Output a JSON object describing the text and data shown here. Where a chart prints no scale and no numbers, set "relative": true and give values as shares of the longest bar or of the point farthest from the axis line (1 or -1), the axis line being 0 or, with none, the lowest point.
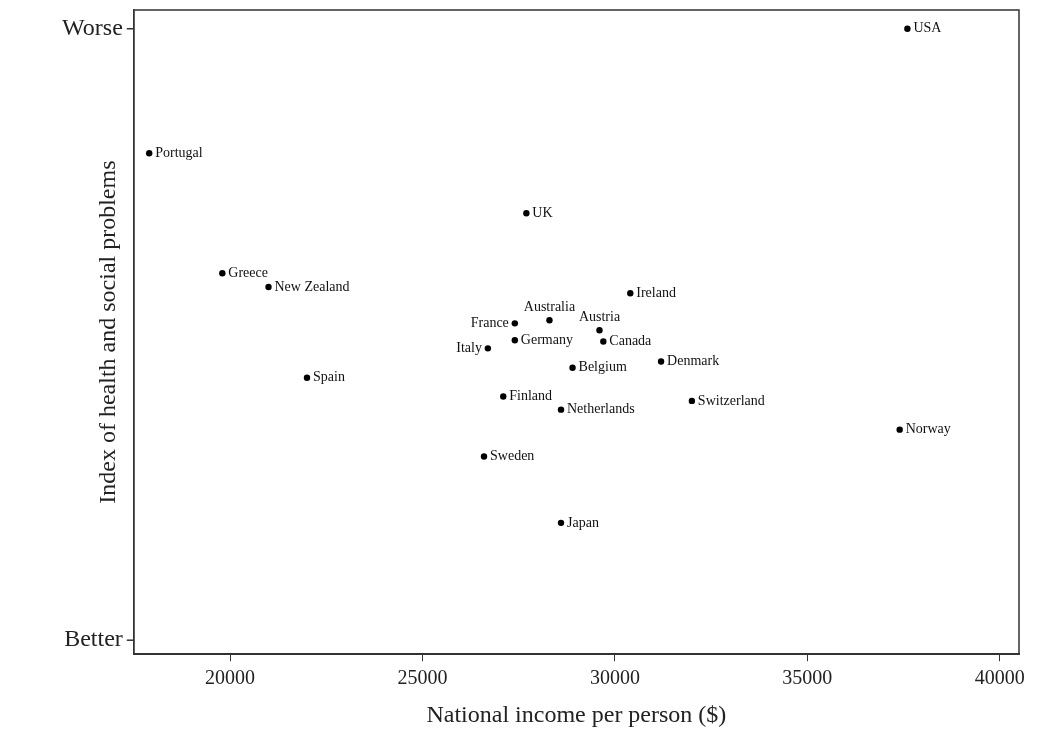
{
  "chart_data": {
    "type": "scatter",
    "xlabel": "National income per person ($)",
    "ylabel": "Index of health and social problems",
    "relative": true,
    "x": [
      37600,
      17900,
      27700,
      19800,
      21000,
      30400,
      28300,
      27400,
      29600,
      27400,
      29700,
      26700,
      31200,
      28900,
      22000,
      27100,
      32000,
      28600,
      37400,
      26600,
      28600
    ],
    "values": [
      1.0,
      0.801,
      0.705,
      0.609,
      0.587,
      0.577,
      0.534,
      0.529,
      0.518,
      0.502,
      0.5,
      0.489,
      0.468,
      0.458,
      0.442,
      0.412,
      0.405,
      0.391,
      0.359,
      0.316,
      0.21
    ],
    "color": "#000000",
    "marker": "circle",
    "grid": false,
    "legend": false,
    "xlim": [
      17500,
      40500
    ],
    "xticks": [
      20000,
      25000,
      30000,
      35000,
      40000
    ],
    "annotations": [
      "Worse",
      "Better",
      {
        "text": "USA",
        "x": 37600,
        "y": 1.0
      },
      {
        "text": "Portugal",
        "x": 17900,
        "y": 0.801
      },
      {
        "text": "UK",
        "x": 27700,
        "y": 0.705
      },
      {
        "text": "Greece",
        "x": 19800,
        "y": 0.609
      },
      {
        "text": "New Zealand",
        "x": 21000,
        "y": 0.587
      },
      {
        "text": "Ireland",
        "x": 30400,
        "y": 0.577
      },
      {
        "text": "Australia",
        "x": 28300,
        "y": 0.534
      },
      {
        "text": "France",
        "x": 27400,
        "y": 0.529
      },
      {
        "text": "Austria",
        "x": 29600,
        "y": 0.518
      },
      {
        "text": "Germany",
        "x": 27400,
        "y": 0.502
      },
      {
        "text": "Canada",
        "x": 29700,
        "y": 0.5
      },
      {
        "text": "Italy",
        "x": 26700,
        "y": 0.489
      },
      {
        "text": "Denmark",
        "x": 31200,
        "y": 0.468
      },
      {
        "text": "Belgium",
        "x": 28900,
        "y": 0.458
      },
      {
        "text": "Spain",
        "x": 22000,
        "y": 0.442
      },
      {
        "text": "Finland",
        "x": 27100,
        "y": 0.412
      },
      {
        "text": "Switzerland",
        "x": 32000,
        "y": 0.405
      },
      {
        "text": "Netherlands",
        "x": 28600,
        "y": 0.391
      },
      {
        "text": "Norway",
        "x": 37400,
        "y": 0.359
      },
      {
        "text": "Sweden",
        "x": 26600,
        "y": 0.316
      },
      {
        "text": "Japan",
        "x": 28600,
        "y": 0.21
      }
    ]
  }
}
